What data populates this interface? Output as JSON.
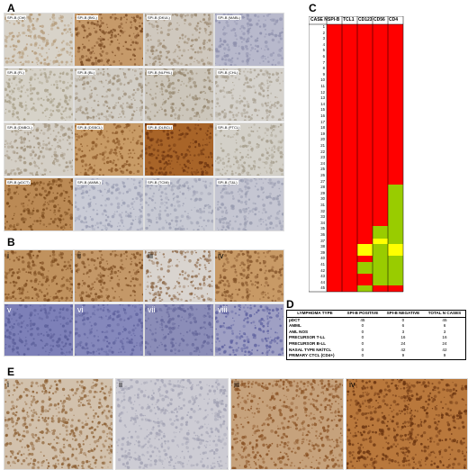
{
  "panels": {
    "a": "A",
    "b": "B",
    "c": "C",
    "d": "D",
    "e": "E"
  },
  "panel_a_tiles": [
    {
      "label": "SPI-B (Ctrl)",
      "bg": "#d8d3c9",
      "dot": "#b49a78"
    },
    {
      "label": "SPI-B (BKL)",
      "bg": "#c69a6a",
      "dot": "#7a4a22"
    },
    {
      "label": "SPI-B (DKUL)",
      "bg": "#cfc8be",
      "dot": "#9c8a72"
    },
    {
      "label": "SPI-B (MABL)",
      "bg": "#b8b9cc",
      "dot": "#8f91ad"
    },
    {
      "label": "SPI-B (FL)",
      "bg": "#d6d2c8",
      "dot": "#a89f88"
    },
    {
      "label": "SPI-B (BL)",
      "bg": "#d2cec6",
      "dot": "#9d8e78"
    },
    {
      "label": "SPI-B (NLPHL)",
      "bg": "#ccc6bb",
      "dot": "#978870"
    },
    {
      "label": "SPI-B (CHL)",
      "bg": "#d5d2cc",
      "dot": "#a9a090"
    },
    {
      "label": "SPI-B (DNBCL)",
      "bg": "#d4cfc6",
      "dot": "#a0927c"
    },
    {
      "label": "SPI-B (DSBCL)",
      "bg": "#c89b66",
      "dot": "#8a5626"
    },
    {
      "label": "SPI-B (DLBCL)",
      "bg": "#a86428",
      "dot": "#6e3510"
    },
    {
      "label": "SPI-B (PTCL)",
      "bg": "#d3d0c8",
      "dot": "#a79f8e"
    },
    {
      "label": "SPI-B (pDCT)",
      "bg": "#bb8a55",
      "dot": "#7a4a1c"
    },
    {
      "label": "SPI-B (AMML)",
      "bg": "#c9cbd6",
      "dot": "#9a9db2"
    },
    {
      "label": "SPI-B (TCMi)",
      "bg": "#c8cad4",
      "dot": "#9c9fb2"
    },
    {
      "label": "SPI-B (T&L)",
      "bg": "#c5c6d2",
      "dot": "#999cb0"
    }
  ],
  "panel_b_tiles": [
    {
      "label": "i",
      "bg": "#c0925e",
      "dot": "#7c4b1e"
    },
    {
      "label": "ii",
      "bg": "#c49868",
      "dot": "#7e4e22"
    },
    {
      "label": "iii",
      "bg": "#d9d4cf",
      "dot": "#8e6a4a"
    },
    {
      "label": "iv",
      "bg": "#c89a66",
      "dot": "#84542a"
    },
    {
      "label": "v",
      "bg": "#7d80b8",
      "dot": "#5a5d98"
    },
    {
      "label": "vi",
      "bg": "#8588bc",
      "dot": "#5e619c"
    },
    {
      "label": "vii",
      "bg": "#8b8db8",
      "dot": "#64669a"
    },
    {
      "label": "viii",
      "bg": "#9fa0c4",
      "dot": "#5f62a0"
    }
  ],
  "panel_e_tiles": [
    {
      "label": "i",
      "bg": "#d2c1ac",
      "dot": "#8e6236"
    },
    {
      "label": "ii",
      "bg": "#cdccd4",
      "dot": "#a3a3b4"
    },
    {
      "label": "iii",
      "bg": "#c6a27c",
      "dot": "#8a5224"
    },
    {
      "label": "iv",
      "bg": "#b9783c",
      "dot": "#6a3410"
    }
  ],
  "heatmap": {
    "case_header": "CASE N",
    "columns": [
      "SPI-B",
      "TCL1",
      "CD123",
      "CD56",
      "CD4"
    ],
    "colors": {
      "R": "#ff0000",
      "G": "#99cc00",
      "Y": "#ffff00"
    },
    "rows": [
      "RRRRR",
      "RRRRR",
      "RRRRR",
      "RRRRR",
      "RRRRR",
      "RRRRR",
      "RRRRR",
      "RRRRR",
      "RRRRR",
      "RRRRR",
      "RRRRR",
      "RRRRR",
      "RRRRR",
      "RRRRR",
      "RRRRR",
      "RRRRR",
      "RRRRR",
      "RRRRR",
      "RRRRR",
      "RRRRR",
      "RRRRR",
      "RRRRR",
      "RRRRR",
      "RRRRR",
      "RRRRR",
      "RRRRR",
      "RRRRR",
      "RRRRG",
      "RRRRG",
      "RRRRG",
      "RRRRG",
      "RRRRG",
      "RRRRG",
      "RRRRG",
      "RRRGG",
      "RRRGG",
      "RRRYG",
      "RRYGY",
      "RRYGY",
      "RRRGG",
      "RRGGG",
      "RRGGG",
      "RRRGG",
      "RRRGG",
      "RRGRR"
    ]
  },
  "table_d": {
    "headers": [
      "LYMPHOMA TYPE",
      "SPI-B POSITIVE",
      "SPI-B NEGATIVE",
      "TOTAL N CASES"
    ],
    "rows": [
      [
        "pDCT",
        "45",
        "0",
        "45"
      ],
      [
        "AMML",
        "0",
        "6",
        "6"
      ],
      [
        "AML NOS",
        "0",
        "3",
        "3"
      ],
      [
        "PRECURSOR T-LL",
        "0",
        "16",
        "16"
      ],
      [
        "PRECURSOR B-LL",
        "0",
        "24",
        "24"
      ],
      [
        "NASAL TYPE NK/TCL",
        "0",
        "42",
        "42"
      ],
      [
        "PRIMARY CTCL (CD4+)",
        "0",
        "9",
        "9"
      ]
    ]
  }
}
